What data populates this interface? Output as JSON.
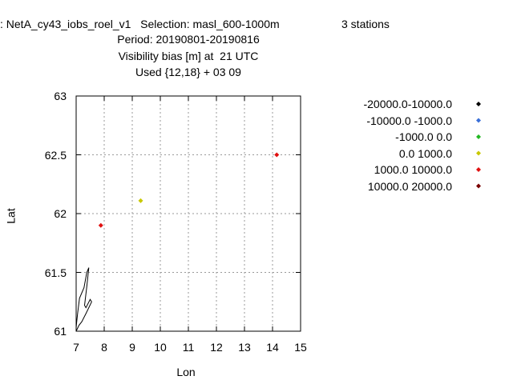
{
  "header": {
    "line1_left": ": NetA_cy43_iobs_roel_v1   Selection: masl_600-1000m",
    "line1_right": "3 stations",
    "line2": "Period: 20190801-20190816",
    "line3": "Visibility bias [m] at  21 UTC",
    "line4": "Used {12,18} + 03 09"
  },
  "chart_data": {
    "type": "scatter",
    "xlabel": "Lon",
    "ylabel": "Lat",
    "xlim": [
      7,
      15
    ],
    "ylim": [
      61,
      63
    ],
    "x_ticks": [
      "7",
      "8",
      "9",
      "10",
      "11",
      "12",
      "13",
      "14",
      "15"
    ],
    "y_ticks": [
      "61",
      "61.5",
      "62",
      "62.5",
      "63"
    ],
    "grid": true,
    "legend_position": "right",
    "legend": [
      {
        "label": "-20000.0-10000.0",
        "color": "#000000"
      },
      {
        "label": "-10000.0 -1000.0",
        "color": "#3a6fd8"
      },
      {
        "label": "-1000.0 0.0",
        "color": "#22b822"
      },
      {
        "label": "0.0 1000.0",
        "color": "#c8c800"
      },
      {
        "label": "1000.0 10000.0",
        "color": "#e01010"
      },
      {
        "label": "10000.0 20000.0",
        "color": "#7a0000"
      }
    ],
    "points": [
      {
        "lon": 7.88,
        "lat": 61.9,
        "color": "#e01010"
      },
      {
        "lon": 9.3,
        "lat": 62.11,
        "color": "#c8c800"
      },
      {
        "lon": 14.15,
        "lat": 62.5,
        "color": "#e01010"
      }
    ],
    "coastline": [
      [
        7.0,
        61.0
      ],
      [
        7.1,
        61.05
      ],
      [
        7.2,
        61.08
      ],
      [
        7.35,
        61.15
      ],
      [
        7.55,
        61.25
      ],
      [
        7.5,
        61.27
      ],
      [
        7.35,
        61.2
      ],
      [
        7.3,
        61.22
      ],
      [
        7.38,
        61.38
      ],
      [
        7.45,
        61.54
      ],
      [
        7.38,
        61.5
      ],
      [
        7.28,
        61.37
      ],
      [
        7.12,
        61.28
      ],
      [
        7.05,
        61.15
      ],
      [
        7.02,
        61.08
      ],
      [
        7.0,
        61.03
      ]
    ]
  }
}
